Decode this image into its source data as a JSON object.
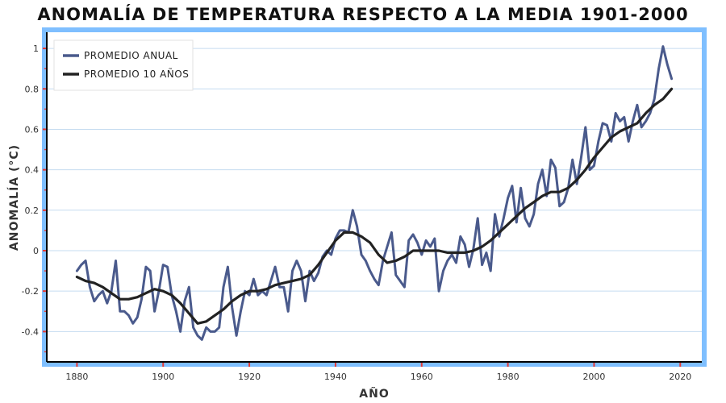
{
  "chart_data": {
    "type": "line",
    "title": "ANOMALÍA DE TEMPERATURA RESPECTO A LA MEDIA 1901-2000",
    "xlabel": "AÑO",
    "ylabel": "ANOMALÍA (°C)",
    "xlim": [
      1873,
      2025
    ],
    "ylim": [
      -0.55,
      1.08
    ],
    "xticks": [
      1880,
      1900,
      1920,
      1940,
      1960,
      1980,
      2000,
      2020
    ],
    "yticks": [
      -0.4,
      -0.2,
      0,
      0.2,
      0.4,
      0.6,
      0.8,
      1
    ],
    "ytick_labels": [
      "-0.4",
      "-0.2",
      "0",
      "0.2",
      "0.4",
      "0.6",
      "0.8",
      "1"
    ],
    "grid": "horizontal",
    "legend_position": "top-left",
    "colors": {
      "annual": "#4a5a8c",
      "decadal": "#222222",
      "frame": "#7fbfff",
      "grid": "#c5dcf0",
      "tick_marks": "#e53935"
    },
    "series": [
      {
        "name": "PROMEDIO ANUAL",
        "x": [
          1880,
          1881,
          1882,
          1883,
          1884,
          1885,
          1886,
          1887,
          1888,
          1889,
          1890,
          1891,
          1892,
          1893,
          1894,
          1895,
          1896,
          1897,
          1898,
          1899,
          1900,
          1901,
          1902,
          1903,
          1904,
          1905,
          1906,
          1907,
          1908,
          1909,
          1910,
          1911,
          1912,
          1913,
          1914,
          1915,
          1916,
          1917,
          1918,
          1919,
          1920,
          1921,
          1922,
          1923,
          1924,
          1925,
          1926,
          1927,
          1928,
          1929,
          1930,
          1931,
          1932,
          1933,
          1934,
          1935,
          1936,
          1937,
          1938,
          1939,
          1940,
          1941,
          1942,
          1943,
          1944,
          1945,
          1946,
          1947,
          1948,
          1949,
          1950,
          1951,
          1952,
          1953,
          1954,
          1955,
          1956,
          1957,
          1958,
          1959,
          1960,
          1961,
          1962,
          1963,
          1964,
          1965,
          1966,
          1967,
          1968,
          1969,
          1970,
          1971,
          1972,
          1973,
          1974,
          1975,
          1976,
          1977,
          1978,
          1979,
          1980,
          1981,
          1982,
          1983,
          1984,
          1985,
          1986,
          1987,
          1988,
          1989,
          1990,
          1991,
          1992,
          1993,
          1994,
          1995,
          1996,
          1997,
          1998,
          1999,
          2000,
          2001,
          2002,
          2003,
          2004,
          2005,
          2006,
          2007,
          2008,
          2009,
          2010,
          2011,
          2012,
          2013,
          2014,
          2015,
          2016,
          2017,
          2018
        ],
        "y": [
          -0.1,
          -0.07,
          -0.05,
          -0.18,
          -0.25,
          -0.22,
          -0.2,
          -0.26,
          -0.2,
          -0.05,
          -0.3,
          -0.3,
          -0.32,
          -0.36,
          -0.33,
          -0.24,
          -0.08,
          -0.1,
          -0.3,
          -0.2,
          -0.07,
          -0.08,
          -0.22,
          -0.3,
          -0.4,
          -0.25,
          -0.18,
          -0.38,
          -0.42,
          -0.44,
          -0.38,
          -0.4,
          -0.4,
          -0.38,
          -0.18,
          -0.08,
          -0.28,
          -0.42,
          -0.3,
          -0.2,
          -0.22,
          -0.14,
          -0.22,
          -0.2,
          -0.22,
          -0.15,
          -0.08,
          -0.18,
          -0.18,
          -0.3,
          -0.1,
          -0.05,
          -0.1,
          -0.25,
          -0.1,
          -0.15,
          -0.11,
          -0.03,
          0,
          -0.02,
          0.06,
          0.1,
          0.1,
          0.09,
          0.2,
          0.12,
          -0.02,
          -0.05,
          -0.1,
          -0.14,
          -0.17,
          -0.05,
          0.02,
          0.09,
          -0.12,
          -0.15,
          -0.18,
          0.05,
          0.08,
          0.04,
          -0.02,
          0.05,
          0.02,
          0.06,
          -0.2,
          -0.1,
          -0.05,
          -0.02,
          -0.06,
          0.07,
          0.03,
          -0.08,
          0.01,
          0.16,
          -0.07,
          -0.01,
          -0.1,
          0.18,
          0.07,
          0.16,
          0.26,
          0.32,
          0.14,
          0.31,
          0.16,
          0.12,
          0.18,
          0.33,
          0.4,
          0.27,
          0.45,
          0.41,
          0.22,
          0.24,
          0.31,
          0.45,
          0.33,
          0.46,
          0.61,
          0.4,
          0.42,
          0.54,
          0.63,
          0.62,
          0.54,
          0.68,
          0.64,
          0.66,
          0.54,
          0.64,
          0.72,
          0.61,
          0.64,
          0.68,
          0.75,
          0.9,
          1.01,
          0.92,
          0.85
        ]
      },
      {
        "name": "PROMEDIO 10 AÑOS",
        "x": [
          1880,
          1882,
          1884,
          1886,
          1888,
          1890,
          1892,
          1894,
          1896,
          1898,
          1900,
          1902,
          1904,
          1906,
          1908,
          1910,
          1912,
          1914,
          1916,
          1918,
          1920,
          1922,
          1924,
          1926,
          1928,
          1930,
          1932,
          1934,
          1936,
          1938,
          1940,
          1942,
          1944,
          1946,
          1948,
          1950,
          1952,
          1954,
          1956,
          1958,
          1960,
          1962,
          1964,
          1966,
          1968,
          1970,
          1972,
          1974,
          1976,
          1978,
          1980,
          1982,
          1984,
          1986,
          1988,
          1990,
          1992,
          1994,
          1996,
          1998,
          2000,
          2002,
          2004,
          2006,
          2008,
          2010,
          2012,
          2014,
          2016,
          2018
        ],
        "y": [
          -0.13,
          -0.15,
          -0.16,
          -0.18,
          -0.21,
          -0.24,
          -0.24,
          -0.23,
          -0.21,
          -0.19,
          -0.2,
          -0.22,
          -0.26,
          -0.31,
          -0.36,
          -0.35,
          -0.32,
          -0.29,
          -0.25,
          -0.22,
          -0.2,
          -0.2,
          -0.19,
          -0.17,
          -0.16,
          -0.15,
          -0.14,
          -0.12,
          -0.07,
          -0.01,
          0.05,
          0.09,
          0.09,
          0.07,
          0.04,
          -0.02,
          -0.06,
          -0.05,
          -0.03,
          0,
          0,
          0,
          0,
          -0.01,
          -0.01,
          -0.01,
          0,
          0.02,
          0.05,
          0.09,
          0.13,
          0.17,
          0.21,
          0.24,
          0.27,
          0.29,
          0.29,
          0.31,
          0.35,
          0.4,
          0.46,
          0.51,
          0.56,
          0.59,
          0.61,
          0.63,
          0.68,
          0.72,
          0.75,
          0.8
        ]
      }
    ]
  }
}
